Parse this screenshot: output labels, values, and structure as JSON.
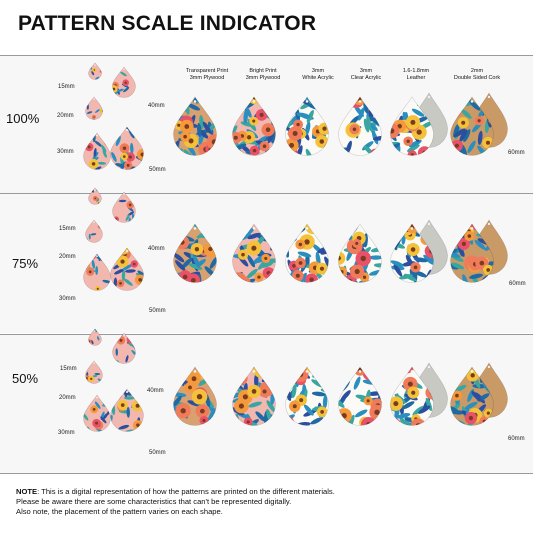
{
  "title": "PATTERN SCALE INDICATOR",
  "materials": [
    {
      "line1": "Transparent Print",
      "line2": "3mm Plywood"
    },
    {
      "line1": "Bright Print",
      "line2": "3mm Plywood"
    },
    {
      "line1": "3mm",
      "line2": "White Acrylic"
    },
    {
      "line1": "3mm",
      "line2": "Clear Acrylic"
    },
    {
      "line1": "1.6-1.8mm",
      "line2": "Leather"
    },
    {
      "line1": "2mm",
      "line2": "Double Sided Cork"
    }
  ],
  "sections": [
    {
      "scale": "100%",
      "sizes": {
        "s15": "15mm",
        "s20": "20mm",
        "s30": "30mm",
        "s40": "40mm",
        "s50": "50mm",
        "s60": "60mm"
      }
    },
    {
      "scale": "75%",
      "sizes": {
        "s15": "15mm",
        "s20": "20mm",
        "s30": "30mm",
        "s40": "40mm",
        "s50": "50mm",
        "s60": "60mm"
      }
    },
    {
      "scale": "50%",
      "sizes": {
        "s15": "15mm",
        "s20": "20mm",
        "s30": "30mm",
        "s40": "40mm",
        "s50": "50mm",
        "s60": "60mm"
      }
    }
  ],
  "note": {
    "label": "NOTE",
    "line1": ": This is a digital representation of how the patterns are printed on the different materials.",
    "line2": "Please be aware there are some characteristics that can't be represented digitally.",
    "line3": "Also note, the placement of the pattern varies on each shape."
  },
  "colors": {
    "band": "#f7f7f7",
    "divider": "#9a9a9a",
    "plywood": "#d9a070",
    "pink_bg": "#f2b8b0",
    "white": "#fbfaf6",
    "leather": "#c9c9c4",
    "cork": "#c99a66"
  }
}
